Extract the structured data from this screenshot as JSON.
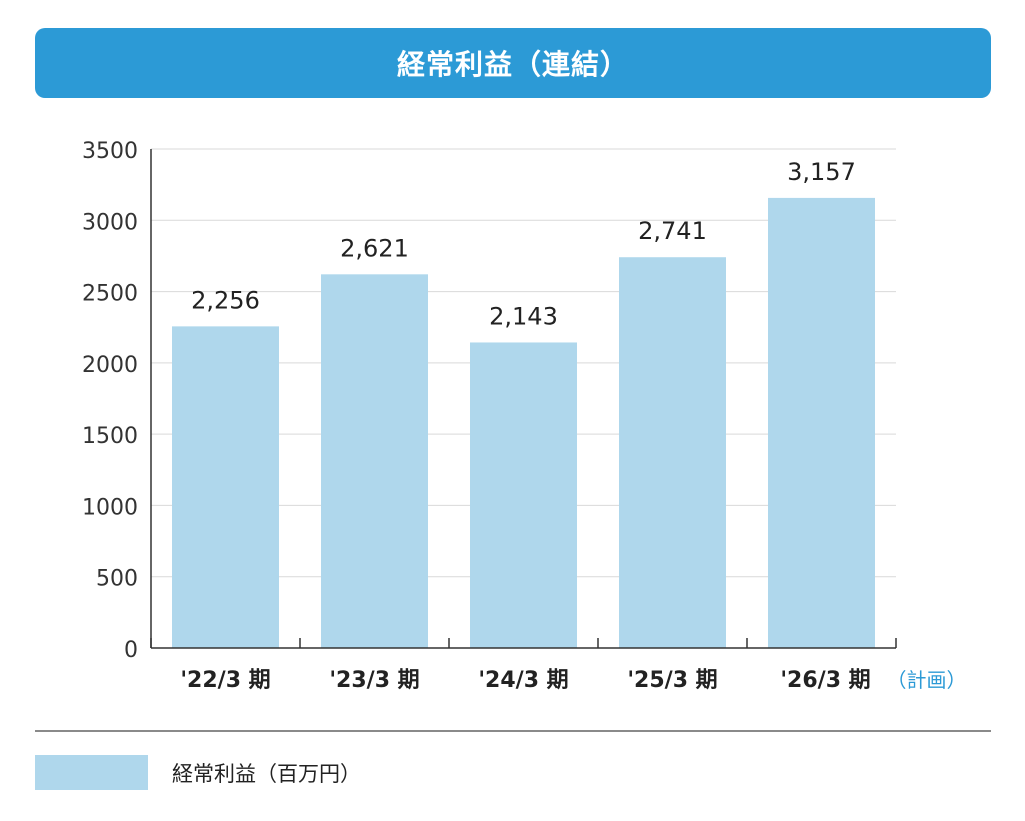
{
  "chart_data": {
    "type": "bar",
    "title": "経常利益（連結）",
    "categories": [
      "'22/3 期",
      "'23/3 期",
      "'24/3 期",
      "'25/3 期",
      "'26/3 期"
    ],
    "category_notes": [
      "",
      "",
      "",
      "",
      "（計画）"
    ],
    "series": [
      {
        "name": "経常利益（百万円）",
        "values": [
          2256,
          2621,
          2143,
          2741,
          3157
        ],
        "value_labels": [
          "2,256",
          "2,621",
          "2,143",
          "2,741",
          "3,157"
        ]
      }
    ],
    "yticks": [
      0,
      500,
      1000,
      1500,
      2000,
      2500,
      3000,
      3500
    ],
    "ylim": [
      0,
      3500
    ],
    "grid": true,
    "legend_position": "bottom-left",
    "colors": {
      "bar": "#afd7ec",
      "title_bg": "#2c9ad6",
      "note": "#2c9ad6",
      "grid": "#d9d9d9",
      "axis": "#333333"
    }
  }
}
